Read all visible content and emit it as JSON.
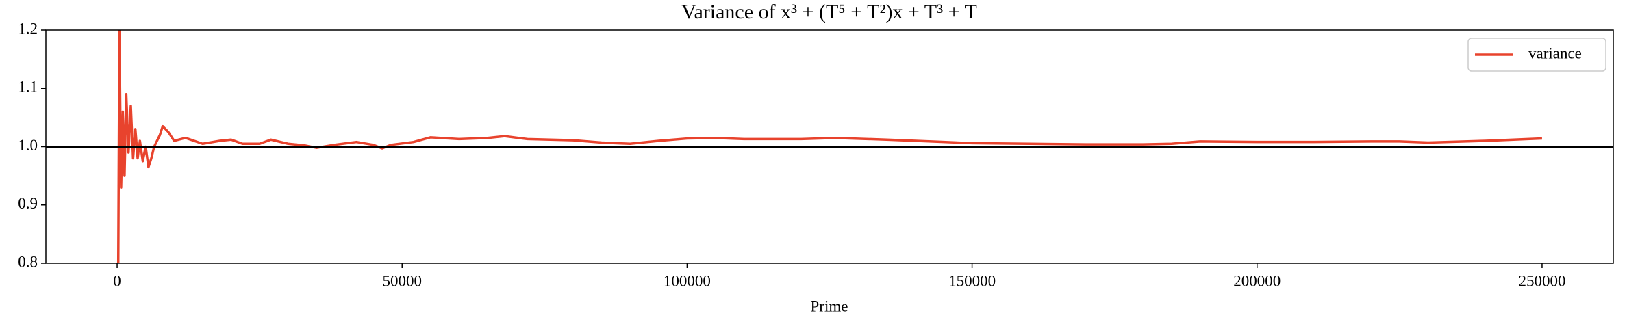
{
  "chart_data": {
    "type": "line",
    "title": "Variance of x³ + (T⁵ + T²)x + T³ + T",
    "xlabel": "Prime",
    "x": [
      200,
      400,
      700,
      1000,
      1300,
      1600,
      2000,
      2400,
      2800,
      3200,
      3600,
      4000,
      4500,
      5000,
      5500,
      6000,
      6500,
      7000,
      7500,
      8000,
      9000,
      10000,
      12000,
      15000,
      18000,
      20000,
      22000,
      25000,
      27000,
      30000,
      33000,
      35000,
      38000,
      42000,
      45000,
      46500,
      48000,
      52000,
      55000,
      60000,
      65000,
      68000,
      72000,
      80000,
      85000,
      90000,
      95000,
      100000,
      105000,
      110000,
      120000,
      126000,
      135000,
      145000,
      150000,
      160000,
      170000,
      180000,
      185000,
      190000,
      200000,
      210000,
      220000,
      225000,
      230000,
      240000,
      245000,
      250000
    ],
    "series": [
      {
        "name": "variance",
        "color": "#e8432d",
        "values": [
          0.8,
          1.2,
          0.93,
          1.06,
          0.95,
          1.09,
          0.99,
          1.07,
          0.98,
          1.03,
          0.98,
          1.01,
          0.975,
          1.0,
          0.965,
          0.98,
          1.0,
          1.01,
          1.02,
          1.035,
          1.025,
          1.01,
          1.015,
          1.005,
          1.01,
          1.012,
          1.005,
          1.005,
          1.012,
          1.005,
          1.002,
          0.998,
          1.003,
          1.008,
          1.003,
          0.997,
          1.003,
          1.008,
          1.016,
          1.013,
          1.015,
          1.018,
          1.013,
          1.011,
          1.007,
          1.005,
          1.01,
          1.014,
          1.015,
          1.013,
          1.013,
          1.015,
          1.012,
          1.008,
          1.006,
          1.005,
          1.004,
          1.004,
          1.005,
          1.009,
          1.008,
          1.008,
          1.009,
          1.009,
          1.007,
          1.01,
          1.012,
          1.014
        ]
      }
    ],
    "hline": 1,
    "xlim": [
      -12500,
      262500
    ],
    "ylim": [
      0.8,
      1.2
    ],
    "xticks": [
      0,
      50000,
      100000,
      150000,
      200000,
      250000
    ],
    "yticks": [
      0.8,
      0.9,
      {
        "value": 1,
        "label": "1.0"
      },
      1.1,
      1.2
    ],
    "grid": false,
    "legend": "upper right"
  }
}
